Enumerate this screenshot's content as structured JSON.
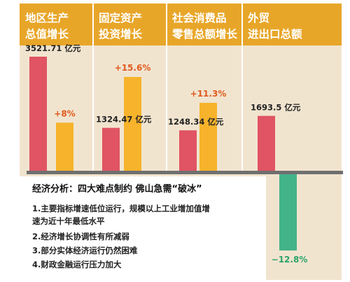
{
  "colors": {
    "background": "#ffffff",
    "panel": "#f1e4cf",
    "header": "#e8a629",
    "divider": "#ffffff",
    "bar_red": "#e05463",
    "bar_orange": "#f6b32b",
    "bar_green": "#43b38a",
    "baseline": "#6f6f6f",
    "pct_positive": "#e05a1e",
    "pct_negative": "#2aa369"
  },
  "chart_data": {
    "type": "bar",
    "categories": [
      {
        "header_line1": "地区生产",
        "header_line2": "总值增长",
        "amount": 3521.71,
        "amount_label": "3521.71 亿元",
        "growth_pct": 8,
        "growth_label": "+8%"
      },
      {
        "header_line1": "固定资产",
        "header_line2": "投资增长",
        "amount": 1324.47,
        "amount_label": "1324.47 亿元",
        "growth_pct": 15.6,
        "growth_label": "+15.6%"
      },
      {
        "header_line1": "社会消费品",
        "header_line2": "零售总额增长",
        "amount": 1248.34,
        "amount_label": "1248.34 亿元",
        "growth_pct": 11.3,
        "growth_label": "+11.3%"
      },
      {
        "header_line1": "外贸",
        "header_line2": "进出口总额",
        "amount": 1693.5,
        "amount_label": "1693.5 亿元",
        "growth_pct": -12.8,
        "growth_label": "−12.8%"
      }
    ],
    "series": [
      {
        "key": "amount",
        "unit": "亿元",
        "color": "#e05463"
      },
      {
        "key": "growth_pct",
        "unit": "%",
        "color": "#f6b32b",
        "negative_color": "#43b38a"
      }
    ]
  },
  "analysis": {
    "title": "经济分析：四大难点制约 佛山急需“破冰”",
    "items": [
      {
        "lines": [
          "1.主要指标增速低位运行，规模以上工业增加值增",
          "速为近十年最低水平"
        ]
      },
      {
        "lines": [
          "2.经济增长协调性有所减弱"
        ]
      },
      {
        "lines": [
          "3.部分实体经济运行仍然困难"
        ]
      },
      {
        "lines": [
          "4.财政金融运行压力加大"
        ]
      }
    ]
  }
}
